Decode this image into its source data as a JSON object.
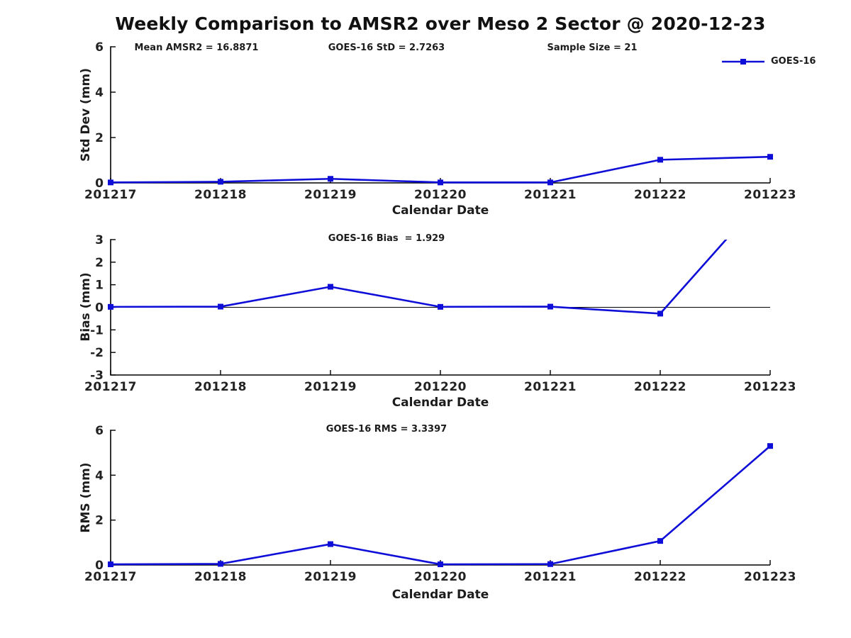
{
  "title": "Weekly Comparison to AMSR2 over Meso 2 Sector @ 2020-12-23",
  "colors": {
    "series": "#0e0ed8",
    "axis": "#000000",
    "text": "#222222",
    "background": "#ffffff"
  },
  "chart_data": [
    {
      "type": "line",
      "annotations": [
        "Mean AMSR2 = 16.8871",
        "GOES-16 StD = 2.7263",
        "Sample Size = 21"
      ],
      "categories": [
        "201217",
        "201218",
        "201219",
        "201220",
        "201221",
        "201222",
        "201223"
      ],
      "series": [
        {
          "name": "GOES-16",
          "values": [
            0.02,
            0.05,
            0.18,
            0.02,
            0.02,
            1.02,
            1.15
          ]
        }
      ],
      "xlabel": "Calendar Date",
      "ylabel": "Std Dev (mm)",
      "ylim": [
        0,
        6
      ],
      "yticks": [
        0,
        2,
        4,
        6
      ],
      "grid": false,
      "legend_position": "top-right",
      "marker": "square"
    },
    {
      "type": "line",
      "annotation": "GOES-16 Bias  = 1.929",
      "categories": [
        "201217",
        "201218",
        "201219",
        "201220",
        "201221",
        "201222",
        "201223"
      ],
      "series": [
        {
          "name": "GOES-16",
          "values": [
            0.02,
            0.03,
            0.91,
            0.02,
            0.03,
            -0.28,
            5.2
          ]
        }
      ],
      "xlabel": "Calendar Date",
      "ylabel": "Bias (mm)",
      "ylim": [
        -3,
        3
      ],
      "yticks": [
        3,
        2,
        1,
        0,
        -1,
        -2,
        -3
      ],
      "zero_line": true,
      "grid": false,
      "marker": "square"
    },
    {
      "type": "line",
      "annotation": "GOES-16 RMS = 3.3397",
      "categories": [
        "201217",
        "201218",
        "201219",
        "201220",
        "201221",
        "201222",
        "201223"
      ],
      "series": [
        {
          "name": "GOES-16",
          "values": [
            0.03,
            0.05,
            0.93,
            0.03,
            0.04,
            1.07,
            5.3
          ]
        }
      ],
      "xlabel": "Calendar Date",
      "ylabel": "RMS (mm)",
      "ylim": [
        0,
        6
      ],
      "yticks": [
        0,
        2,
        4,
        6
      ],
      "grid": false,
      "marker": "square"
    }
  ]
}
